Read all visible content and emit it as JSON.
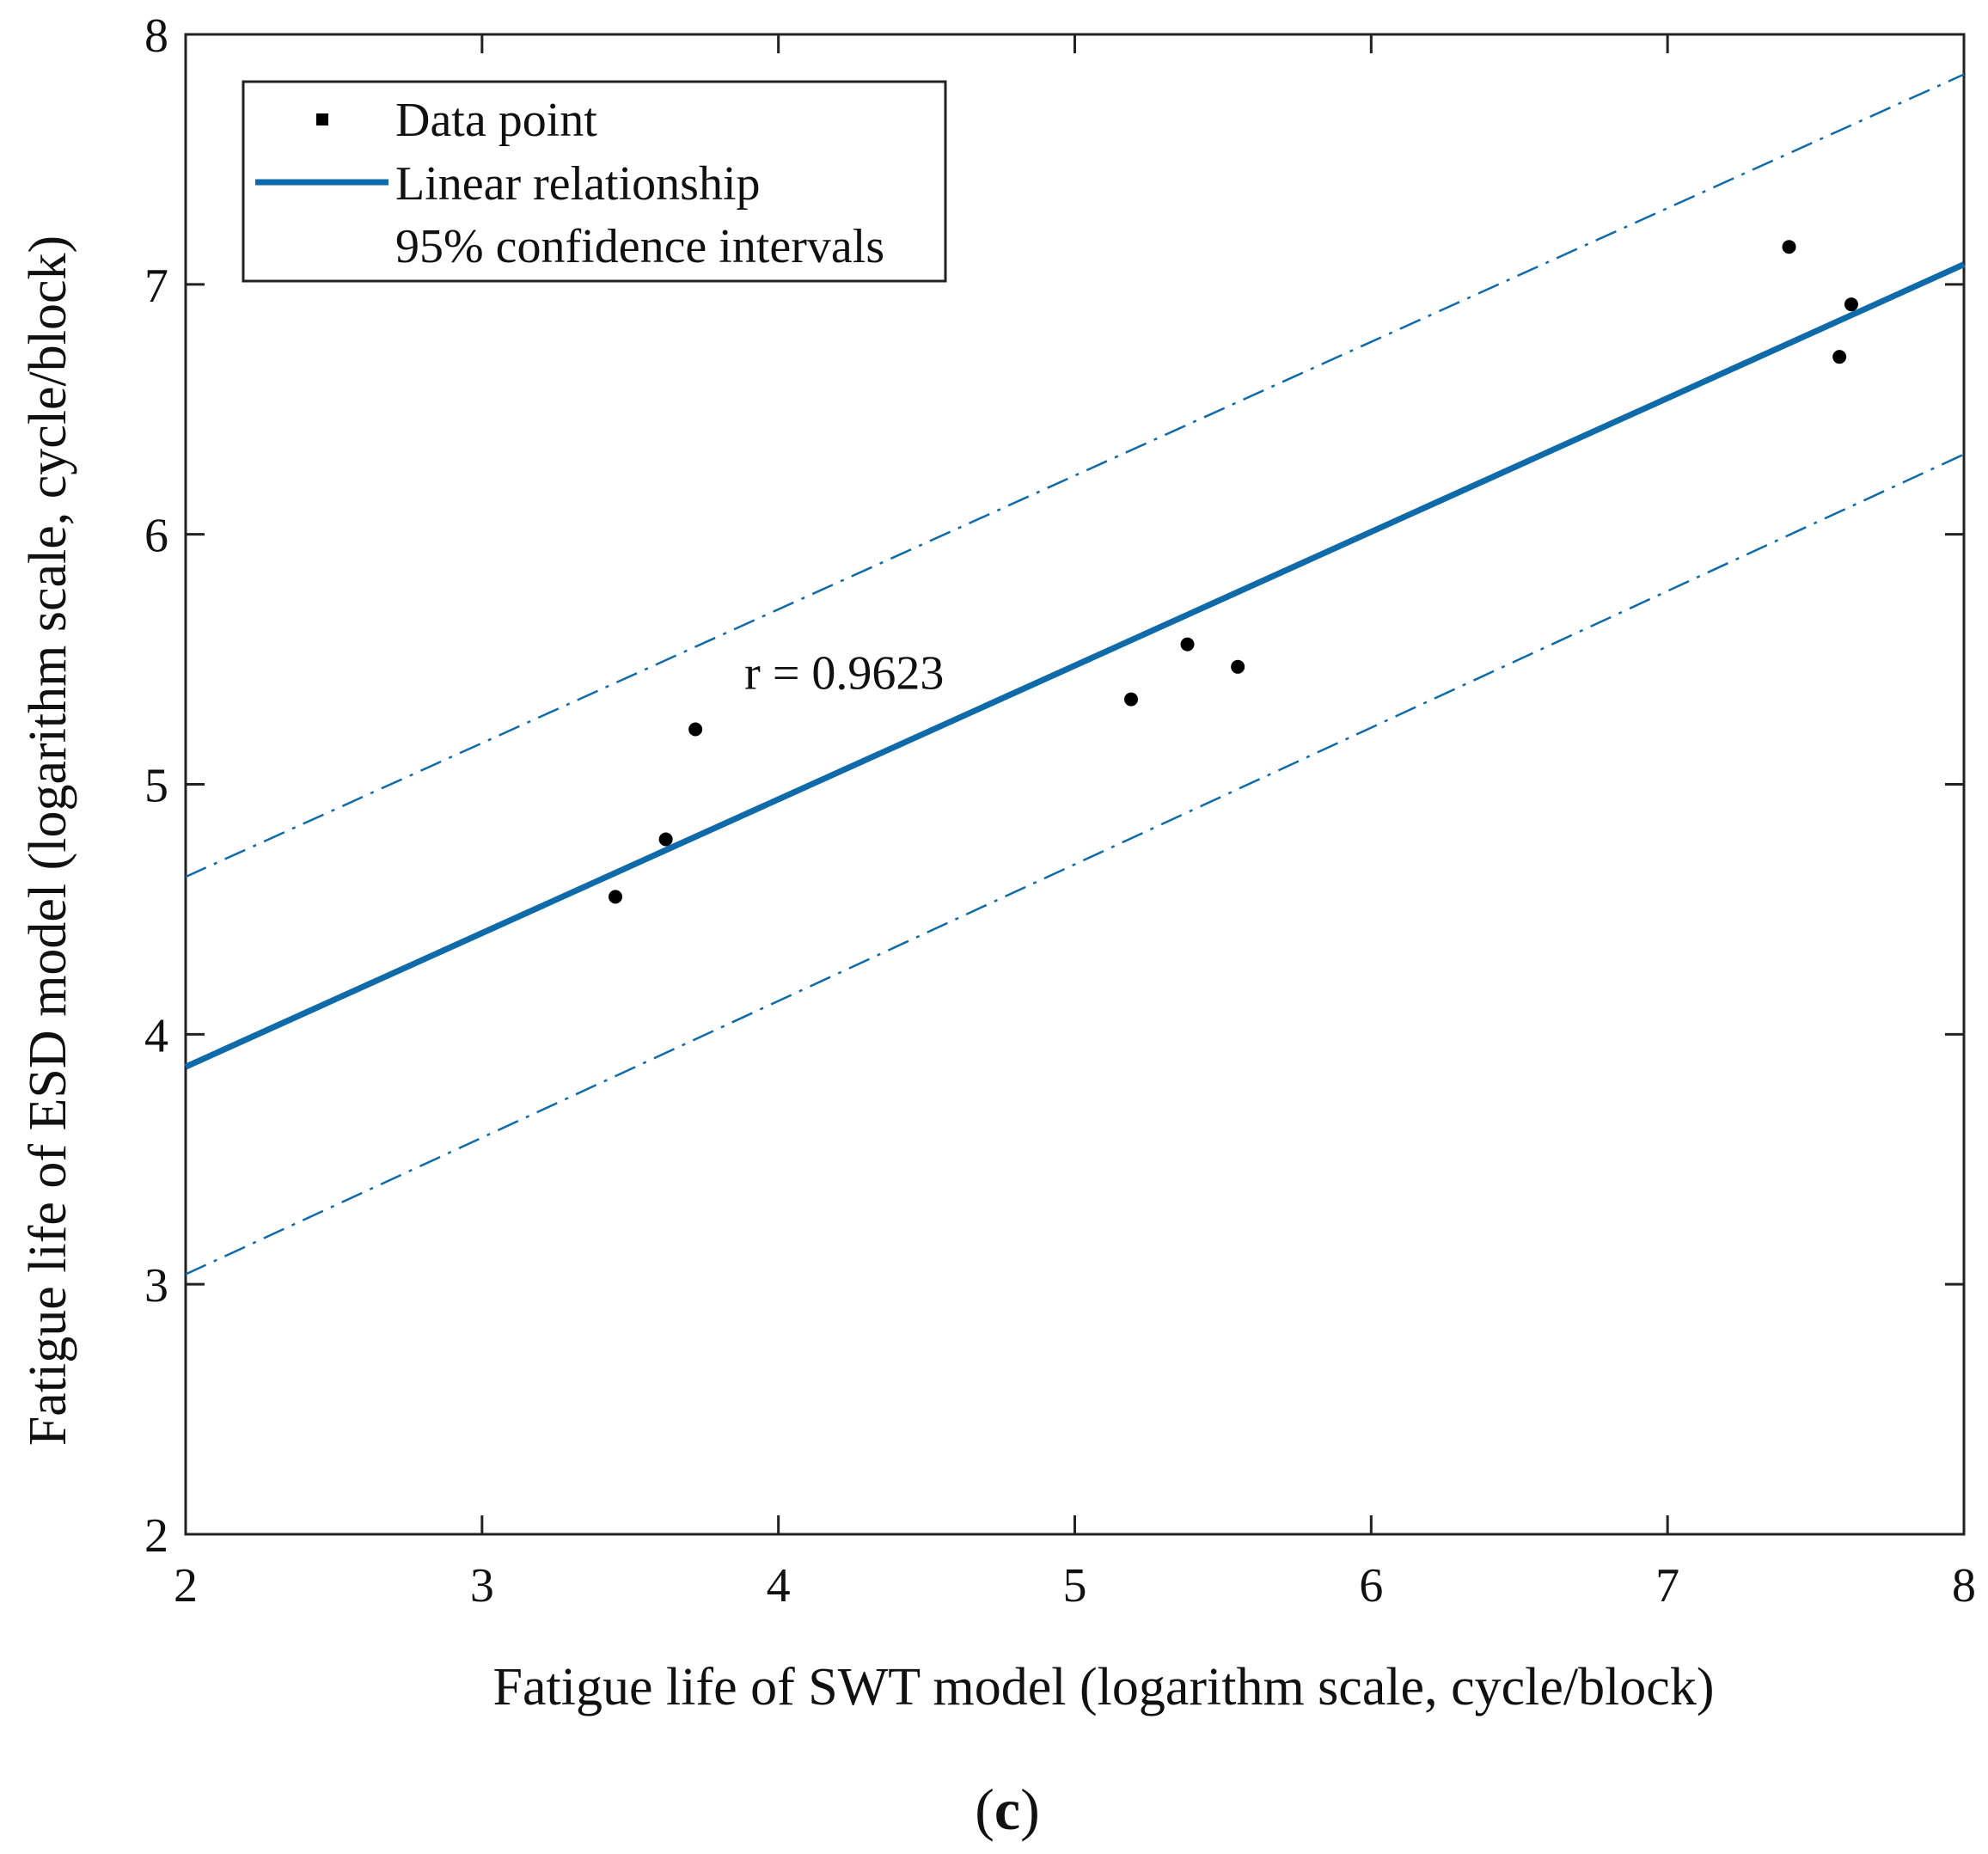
{
  "chart_data": {
    "type": "scatter",
    "title": "",
    "xlabel": "Fatigue life of SWT model (logarithm scale, cycle/block)",
    "ylabel": "Fatigue life of ESD model (logarithm scale, cycle/block)",
    "xlim": [
      2,
      8
    ],
    "ylim": [
      2,
      8
    ],
    "xticks": [
      2,
      3,
      4,
      5,
      6,
      7,
      8
    ],
    "yticks": [
      2,
      3,
      4,
      5,
      6,
      7,
      8
    ],
    "xtick_labels": [
      "2",
      "3",
      "4",
      "5",
      "6",
      "7",
      "8"
    ],
    "ytick_labels": [
      "2",
      "3",
      "4",
      "5",
      "6",
      "7",
      "8"
    ],
    "grid": false,
    "legend_position": "top-left",
    "series": [
      {
        "name": "Data point",
        "kind": "scatter",
        "color": "#000000",
        "points": [
          {
            "x": 3.45,
            "y": 4.55
          },
          {
            "x": 3.62,
            "y": 4.78
          },
          {
            "x": 3.72,
            "y": 5.22
          },
          {
            "x": 5.19,
            "y": 5.34
          },
          {
            "x": 5.38,
            "y": 5.56
          },
          {
            "x": 5.55,
            "y": 5.47
          },
          {
            "x": 7.41,
            "y": 7.15
          },
          {
            "x": 7.58,
            "y": 6.71
          },
          {
            "x": 7.62,
            "y": 6.92
          }
        ]
      },
      {
        "name": "Linear relationship",
        "kind": "line",
        "color": "#0e6aa8",
        "x": [
          2,
          8
        ],
        "y": [
          3.87,
          7.08
        ]
      },
      {
        "name": "95% confidence intervals",
        "kind": "dashdot",
        "color": "#0e6aa8",
        "upper": {
          "x": [
            2,
            8
          ],
          "y": [
            4.63,
            7.84
          ]
        },
        "lower": {
          "x": [
            2,
            8
          ],
          "y": [
            3.04,
            6.32
          ]
        }
      }
    ],
    "annotations": [
      {
        "text": "r = 0.9623",
        "x": 3.9,
        "y": 5.45
      }
    ],
    "caption": {
      "open": "(",
      "letter": "c",
      "close": ")"
    }
  }
}
